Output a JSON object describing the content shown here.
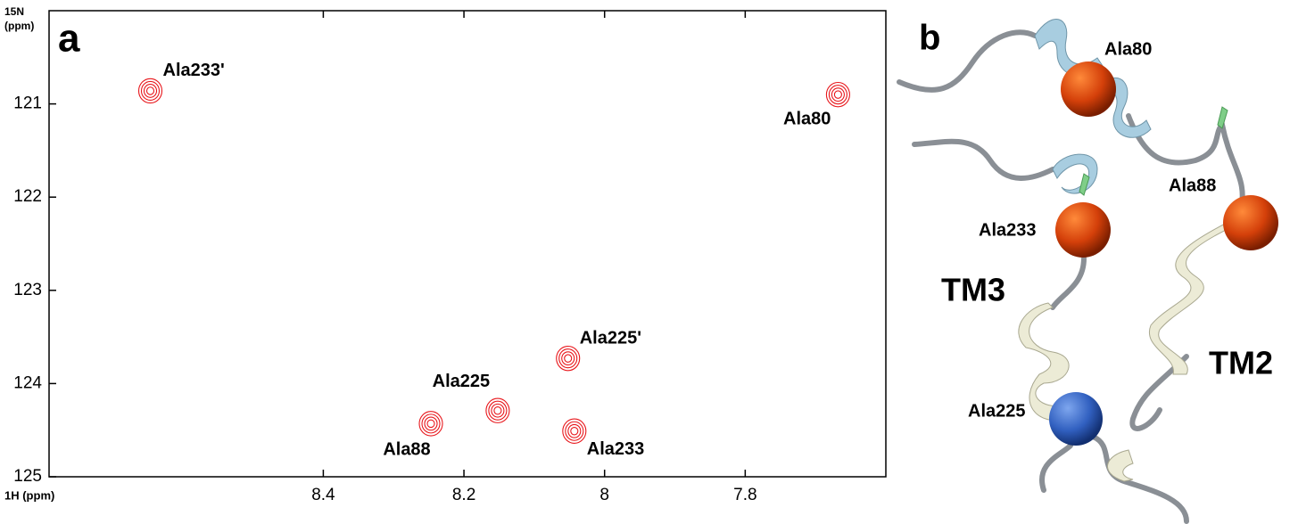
{
  "chart_data": {
    "type": "scatter",
    "panel_label": "a",
    "xlabel": "1H (ppm)",
    "ylabel": [
      "15N",
      "(ppm)"
    ],
    "labels": [
      "Ala233'",
      "Ala80",
      "Ala225'",
      "Ala225",
      "Ala88",
      "Ala233"
    ],
    "x": [
      8.646,
      7.668,
      8.052,
      8.152,
      8.247,
      8.043
    ],
    "y": [
      120.86,
      120.9,
      123.73,
      124.29,
      124.43,
      124.51
    ],
    "color": "#e8171c",
    "xlim": [
      8.79,
      7.6
    ],
    "ylim": [
      120,
      125
    ],
    "xticks": [
      8.4,
      8.2,
      8.0,
      7.8
    ],
    "yticks": [
      121,
      122,
      123,
      124,
      125
    ]
  },
  "panel_b": {
    "label": "b",
    "annotations": [
      "Ala80",
      "Ala88",
      "Ala233",
      "Ala225",
      "TM3",
      "TM2"
    ]
  }
}
